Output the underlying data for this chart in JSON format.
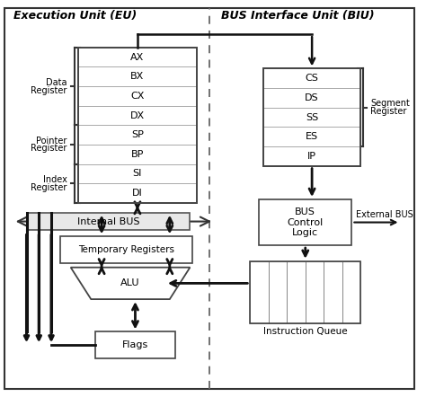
{
  "title_eu": "Execution Unit (EU)",
  "title_biu": "BUS Interface Unit (BIU)",
  "eu_registers": [
    "AX",
    "BX",
    "CX",
    "DX",
    "SP",
    "BP",
    "SI",
    "DI"
  ],
  "biu_registers": [
    "CS",
    "DS",
    "SS",
    "ES",
    "IP"
  ],
  "bg_color": "#ffffff",
  "box_facecolor": "#ffffff",
  "border_color": "#444444",
  "text_color": "#000000",
  "arrow_color": "#111111",
  "divider_color": "#666666",
  "bus_facecolor": "#e8e8e8"
}
